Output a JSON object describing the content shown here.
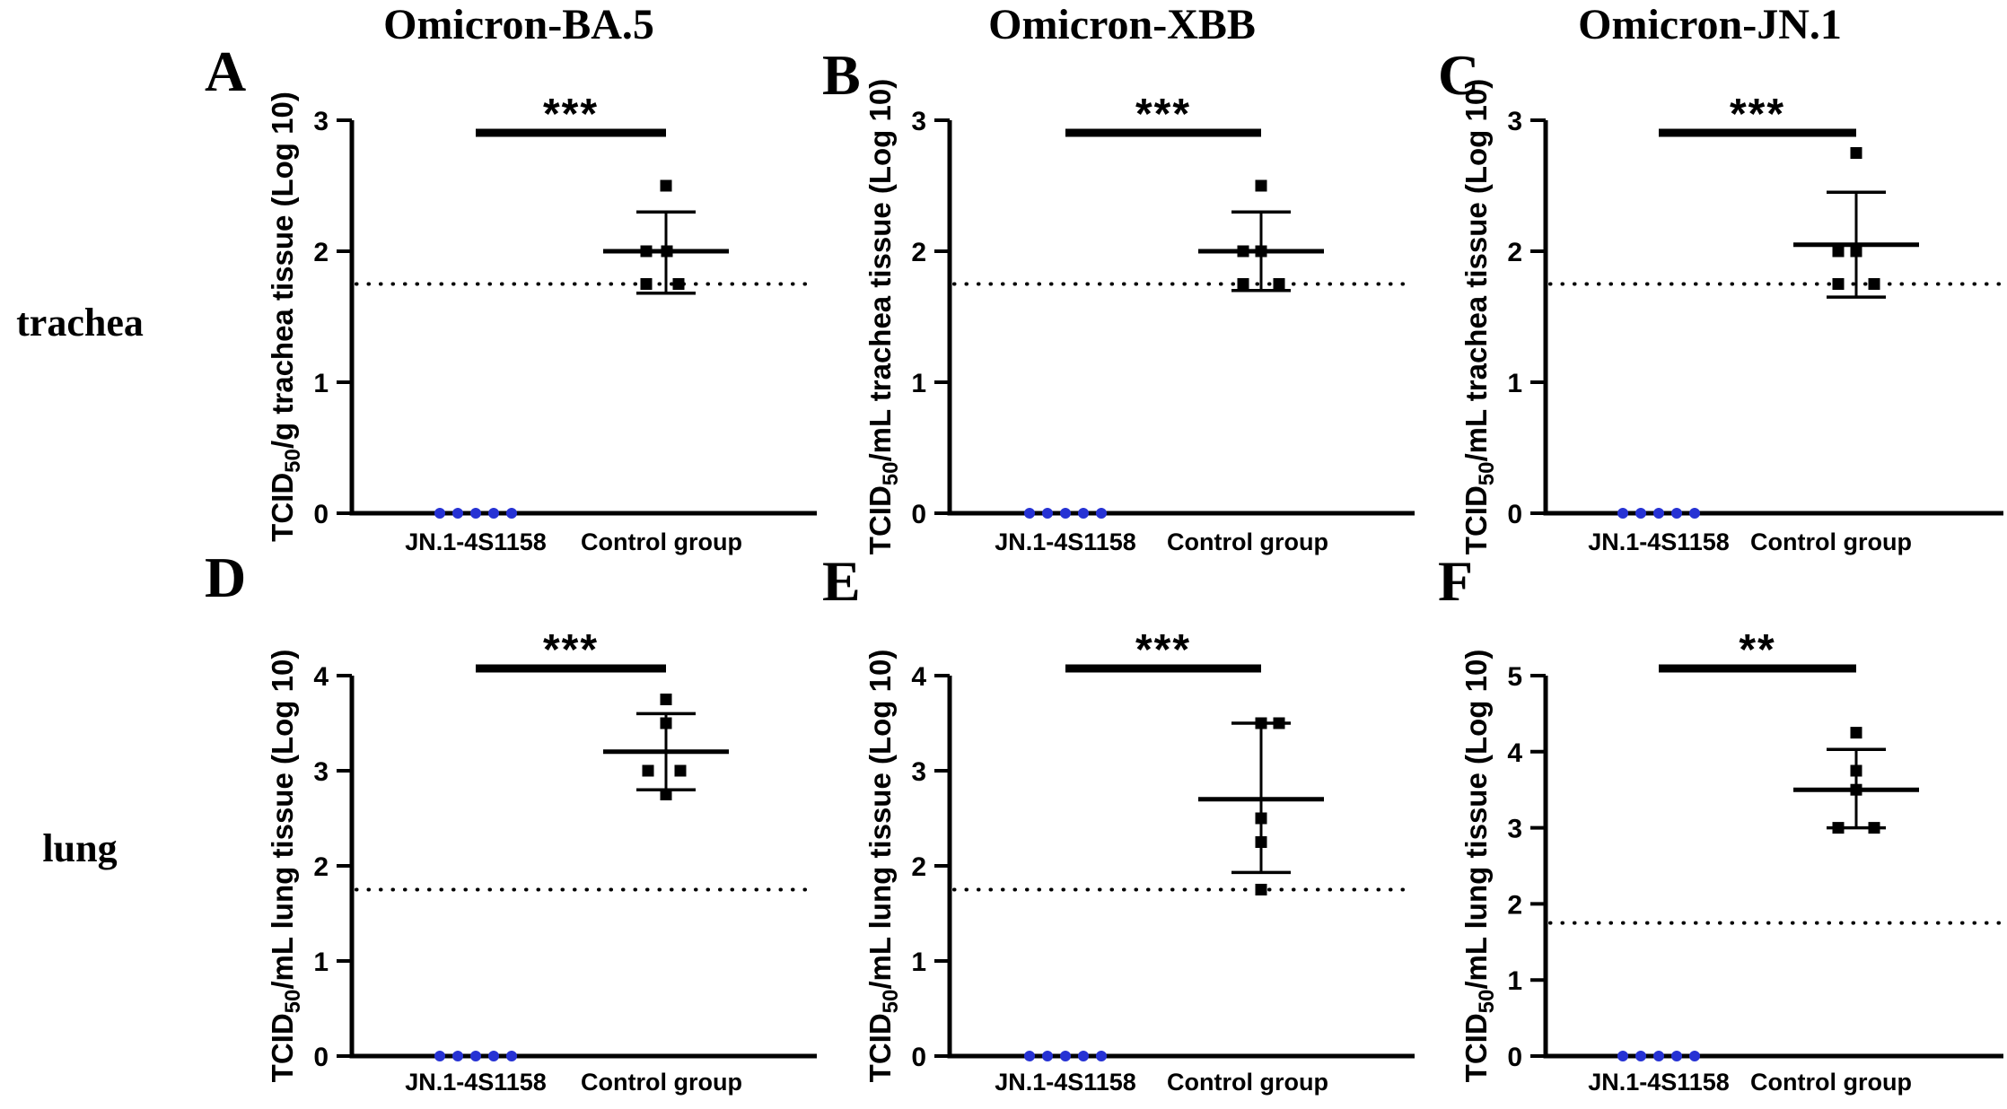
{
  "figure": {
    "columns": [
      {
        "title": "Omicron-BA.5"
      },
      {
        "title": "Omicron-XBB"
      },
      {
        "title": "Omicron-JN.1"
      }
    ],
    "rows": [
      {
        "label": "trachea"
      },
      {
        "label": "lung"
      }
    ]
  },
  "colors": {
    "group1_dot": "#2632d4",
    "group2_marker": "#000000",
    "axis": "#000000"
  },
  "chart_data": [
    {
      "panel": "A",
      "type": "scatter",
      "column_title": "Omicron-BA.5",
      "row": "trachea",
      "ylabel": "TCID50/g trachea tissue (Log 10)",
      "ylabel_parts": {
        "pre": "TCID",
        "sub": "50",
        "post": "/g trachea tissue (Log 10)"
      },
      "ylim": [
        0,
        3
      ],
      "yticks": [
        0,
        1,
        2,
        3
      ],
      "detection_limit": 1.75,
      "significance": "***",
      "groups": [
        {
          "label": "JN.1-4S1158",
          "marker": "circle",
          "color": "#2632d4",
          "values": [
            0,
            0,
            0,
            0,
            0
          ],
          "dx": [
            -40,
            -20,
            0,
            20,
            40
          ]
        },
        {
          "label": "Control group",
          "marker": "square",
          "color": "#000000",
          "values": [
            2.5,
            2.0,
            2.0,
            1.75,
            1.75
          ],
          "dx": [
            0,
            -22,
            1,
            -22,
            14
          ],
          "mean": 2.0,
          "sd_low": 1.68,
          "sd_high": 2.3
        }
      ]
    },
    {
      "panel": "B",
      "type": "scatter",
      "column_title": "Omicron-XBB",
      "row": "trachea",
      "ylabel": "TCID50/mL trachea tissue (Log 10)",
      "ylabel_parts": {
        "pre": "TCID",
        "sub": "50",
        "post": "/mL trachea tissue (Log 10)"
      },
      "ylim": [
        0,
        3
      ],
      "yticks": [
        0,
        1,
        2,
        3
      ],
      "detection_limit": 1.75,
      "significance": "***",
      "groups": [
        {
          "label": "JN.1-4S1158",
          "marker": "circle",
          "color": "#2632d4",
          "values": [
            0,
            0,
            0,
            0,
            0
          ],
          "dx": [
            -40,
            -20,
            0,
            20,
            40
          ]
        },
        {
          "label": "Control group",
          "marker": "square",
          "color": "#000000",
          "values": [
            2.5,
            2.0,
            2.0,
            1.75,
            1.75
          ],
          "dx": [
            0,
            -20,
            0,
            -20,
            20
          ],
          "mean": 2.0,
          "sd_low": 1.7,
          "sd_high": 2.3
        }
      ]
    },
    {
      "panel": "C",
      "type": "scatter",
      "column_title": "Omicron-JN.1",
      "row": "trachea",
      "ylabel": "TCID50/mL trachea tissue (Log 10)",
      "ylabel_parts": {
        "pre": "TCID",
        "sub": "50",
        "post": "/mL trachea tissue (Log 10)"
      },
      "ylim": [
        0,
        3
      ],
      "yticks": [
        0,
        1,
        2,
        3
      ],
      "detection_limit": 1.75,
      "significance": "***",
      "groups": [
        {
          "label": "JN.1-4S1158",
          "marker": "circle",
          "color": "#2632d4",
          "values": [
            0,
            0,
            0,
            0,
            0
          ],
          "dx": [
            -40,
            -20,
            0,
            20,
            40
          ]
        },
        {
          "label": "Control group",
          "marker": "square",
          "color": "#000000",
          "values": [
            2.75,
            2.0,
            2.0,
            1.75,
            1.75
          ],
          "dx": [
            0,
            -20,
            0,
            -20,
            20
          ],
          "mean": 2.05,
          "sd_low": 1.65,
          "sd_high": 2.45
        }
      ]
    },
    {
      "panel": "D",
      "type": "scatter",
      "column_title": "Omicron-BA.5",
      "row": "lung",
      "ylabel": "TCID50/mL lung tissue (Log 10)",
      "ylabel_parts": {
        "pre": "TCID",
        "sub": "50",
        "post": "/mL lung tissue (Log 10)"
      },
      "ylim": [
        0,
        4
      ],
      "yticks": [
        0,
        1,
        2,
        3,
        4
      ],
      "detection_limit": 1.75,
      "significance": "***",
      "groups": [
        {
          "label": "JN.1-4S1158",
          "marker": "circle",
          "color": "#2632d4",
          "values": [
            0,
            0,
            0,
            0,
            0
          ],
          "dx": [
            -40,
            -20,
            0,
            20,
            40
          ]
        },
        {
          "label": "Control group",
          "marker": "square",
          "color": "#000000",
          "values": [
            3.75,
            3.5,
            3.0,
            3.0,
            2.75
          ],
          "dx": [
            0,
            0,
            -20,
            16,
            0
          ],
          "mean": 3.2,
          "sd_low": 2.8,
          "sd_high": 3.6
        }
      ]
    },
    {
      "panel": "E",
      "type": "scatter",
      "column_title": "Omicron-XBB",
      "row": "lung",
      "ylabel": "TCID50/mL lung tissue (Log 10)",
      "ylabel_parts": {
        "pre": "TCID",
        "sub": "50",
        "post": "/mL lung tissue (Log 10)"
      },
      "ylim": [
        0,
        4
      ],
      "yticks": [
        0,
        1,
        2,
        3,
        4
      ],
      "detection_limit": 1.75,
      "significance": "***",
      "groups": [
        {
          "label": "JN.1-4S1158",
          "marker": "circle",
          "color": "#2632d4",
          "values": [
            0,
            0,
            0,
            0,
            0
          ],
          "dx": [
            -40,
            -20,
            0,
            20,
            40
          ]
        },
        {
          "label": "Control group",
          "marker": "square",
          "color": "#000000",
          "values": [
            3.5,
            3.5,
            2.5,
            2.25,
            1.75
          ],
          "dx": [
            0,
            20,
            0,
            0,
            0
          ],
          "mean": 2.7,
          "sd_low": 1.93,
          "sd_high": 3.5
        }
      ]
    },
    {
      "panel": "F",
      "type": "scatter",
      "column_title": "Omicron-JN.1",
      "row": "lung",
      "ylabel": "TCID50/mL lung tissue (Log 10)",
      "ylabel_parts": {
        "pre": "TCID",
        "sub": "50",
        "post": "/mL lung tissue (Log 10)"
      },
      "ylim": [
        0,
        5
      ],
      "yticks": [
        0,
        1,
        2,
        3,
        4,
        5
      ],
      "detection_limit": 1.75,
      "significance": "**",
      "groups": [
        {
          "label": "JN.1-4S1158",
          "marker": "circle",
          "color": "#2632d4",
          "values": [
            0,
            0,
            0,
            0,
            0
          ],
          "dx": [
            -40,
            -20,
            0,
            20,
            40
          ]
        },
        {
          "label": "Control group",
          "marker": "square",
          "color": "#000000",
          "values": [
            4.25,
            3.75,
            3.5,
            3.0,
            3.0
          ],
          "dx": [
            0,
            0,
            0,
            -20,
            20
          ],
          "mean": 3.5,
          "sd_low": 3.0,
          "sd_high": 4.03
        }
      ]
    }
  ]
}
